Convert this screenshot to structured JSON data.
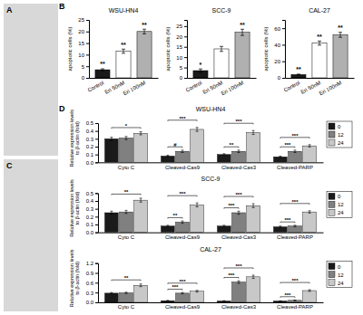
{
  "chart_data": [
    {
      "type": "placeholder",
      "annotations": [
        {
          "text": "A"
        }
      ]
    },
    {
      "type": "bar",
      "title": "WSU-HN4",
      "ylabel": "apoptotic cells (%)",
      "categories": [
        "Control",
        "Eri 50nM",
        "Eri 100nM"
      ],
      "values": [
        3.5,
        11.5,
        20.0
      ],
      "errors": [
        0.4,
        0.9,
        1.0
      ],
      "colors": [
        "#1a1a1a",
        "#ffffff",
        "#b0b0b0"
      ],
      "ylim": [
        0,
        25
      ],
      "yticks": [
        0,
        5,
        10,
        15,
        20,
        25
      ],
      "annotations": [
        {
          "text": "B"
        },
        {
          "text": "**",
          "x": "Control"
        },
        {
          "text": "**",
          "x": "Eri 50nM"
        },
        {
          "text": "**",
          "x": "Eri 100nM"
        }
      ]
    },
    {
      "type": "bar",
      "title": "SCC-9",
      "ylabel": "apoptotic cells (%)",
      "categories": [
        "Control",
        "Eri 50nM",
        "Eri 100nM"
      ],
      "values": [
        3.5,
        14.0,
        22.0
      ],
      "errors": [
        0.8,
        1.2,
        1.5
      ],
      "colors": [
        "#1a1a1a",
        "#ffffff",
        "#b0b0b0"
      ],
      "ylim": [
        0,
        28
      ],
      "yticks": [
        0,
        5,
        10,
        15,
        20,
        25
      ],
      "annotations": [
        {
          "text": "*",
          "x": "Control"
        },
        {
          "text": "**",
          "x": "Eri 100nM"
        }
      ]
    },
    {
      "type": "bar",
      "title": "CAL-27",
      "ylabel": "apoptotic cells (%)",
      "categories": [
        "Control",
        "Eri 50nM",
        "Eri 100nM"
      ],
      "values": [
        4.0,
        42.0,
        52.0
      ],
      "errors": [
        0.5,
        2.5,
        3.0
      ],
      "colors": [
        "#1a1a1a",
        "#ffffff",
        "#b0b0b0"
      ],
      "ylim": [
        0,
        70
      ],
      "yticks": [
        0,
        20,
        40,
        60
      ],
      "annotations": [
        {
          "text": "**",
          "x": "Control"
        },
        {
          "text": "**",
          "x": "Eri 50nM"
        },
        {
          "text": "**",
          "x": "Eri 100nM"
        }
      ]
    },
    {
      "type": "placeholder",
      "annotations": [
        {
          "text": "C"
        }
      ]
    },
    {
      "type": "bar",
      "title": "WSU-HN4",
      "ylabel": "Relative expression levels\nto β-actin (fold)",
      "categories": [
        "Cyto C",
        "Cleaved-Cas9",
        "Cleaved-Cas3",
        "Cleaved-PARP"
      ],
      "series": [
        {
          "name": "0",
          "color": "#1a1a1a",
          "values": [
            0.3,
            0.08,
            0.1,
            0.07
          ],
          "errors": [
            0.02,
            0.01,
            0.01,
            0.01
          ]
        },
        {
          "name": "12",
          "color": "#808080",
          "values": [
            0.31,
            0.14,
            0.14,
            0.14
          ],
          "errors": [
            0.02,
            0.015,
            0.015,
            0.015
          ]
        },
        {
          "name": "24",
          "color": "#c8c8c8",
          "values": [
            0.37,
            0.42,
            0.38,
            0.21
          ],
          "errors": [
            0.02,
            0.025,
            0.025,
            0.015
          ]
        }
      ],
      "ylim": [
        0,
        0.5
      ],
      "yticks": [
        {
          "value": 0,
          "label": "0.0"
        },
        0.1,
        0.2,
        0.3,
        0.4,
        0.5
      ],
      "legend": "right",
      "annotations": [
        {
          "text": "D"
        },
        {
          "text": "*",
          "x": "Cyto C",
          "series": [
            "0",
            "24"
          ]
        },
        {
          "text": "#",
          "x": "Cleaved-Cas9",
          "series": [
            "0",
            "12"
          ]
        },
        {
          "text": "***",
          "x": "Cleaved-Cas9",
          "series": [
            "0",
            "24"
          ]
        },
        {
          "text": "**",
          "x": "Cleaved-Cas3",
          "series": [
            "0",
            "12"
          ]
        },
        {
          "text": "***",
          "x": "Cleaved-Cas3",
          "series": [
            "0",
            "24"
          ]
        },
        {
          "text": "***",
          "x": "Cleaved-PARP",
          "series": [
            "0",
            "12"
          ]
        },
        {
          "text": "***",
          "x": "Cleaved-PARP",
          "series": [
            "0",
            "24"
          ]
        }
      ]
    },
    {
      "type": "bar",
      "title": "SCC-9",
      "ylabel": "Relative expression levels\nto β-actin (fold)",
      "categories": [
        "Cyto C",
        "Cleaved-Cas9",
        "Cleaved-Cas3",
        "Cleaved-PARP"
      ],
      "series": [
        {
          "name": "0",
          "color": "#1a1a1a",
          "values": [
            0.25,
            0.08,
            0.08,
            0.07
          ],
          "errors": [
            0.02,
            0.01,
            0.01,
            0.01
          ]
        },
        {
          "name": "12",
          "color": "#808080",
          "values": [
            0.26,
            0.13,
            0.25,
            0.08
          ],
          "errors": [
            0.02,
            0.015,
            0.02,
            0.01
          ]
        },
        {
          "name": "24",
          "color": "#c8c8c8",
          "values": [
            0.41,
            0.35,
            0.34,
            0.26
          ],
          "errors": [
            0.025,
            0.025,
            0.025,
            0.015
          ]
        }
      ],
      "ylim": [
        0,
        0.5
      ],
      "yticks": [
        {
          "value": 0,
          "label": "0.0"
        },
        0.1,
        0.2,
        0.3,
        0.4,
        0.5
      ],
      "legend": "right",
      "annotations": [
        {
          "text": "**",
          "x": "Cyto C",
          "series": [
            "0",
            "24"
          ]
        },
        {
          "text": "**",
          "x": "Cleaved-Cas9",
          "series": [
            "0",
            "12"
          ]
        },
        {
          "text": "***",
          "x": "Cleaved-Cas9",
          "series": [
            "0",
            "24"
          ]
        },
        {
          "text": "***",
          "x": "Cleaved-Cas3",
          "series": [
            "0",
            "12"
          ]
        },
        {
          "text": "***",
          "x": "Cleaved-Cas3",
          "series": [
            "0",
            "24"
          ]
        },
        {
          "text": "***",
          "x": "Cleaved-PARP",
          "series": [
            "0",
            "12"
          ]
        },
        {
          "text": "***",
          "x": "Cleaved-PARP",
          "series": [
            "0",
            "24"
          ]
        }
      ]
    },
    {
      "type": "bar",
      "title": "CAL-27",
      "ylabel": "Relative expression levels\nto β-actin (fold)",
      "categories": [
        "Cyto C",
        "Cleaved-Cas9",
        "Cleaved-Cas3",
        "Cleaved-PARP"
      ],
      "series": [
        {
          "name": "0",
          "color": "#1a1a1a",
          "values": [
            0.28,
            0.05,
            0.04,
            0.04
          ],
          "errors": [
            0.02,
            0.01,
            0.01,
            0.005
          ]
        },
        {
          "name": "12",
          "color": "#808080",
          "values": [
            0.29,
            0.28,
            0.62,
            0.06
          ],
          "errors": [
            0.02,
            0.02,
            0.04,
            0.01
          ]
        },
        {
          "name": "24",
          "color": "#c8c8c8",
          "values": [
            0.52,
            0.34,
            0.78,
            0.36
          ],
          "errors": [
            0.04,
            0.025,
            0.05,
            0.025
          ]
        }
      ],
      "ylim": [
        0,
        1.2
      ],
      "yticks": [
        {
          "value": 0,
          "label": "0.0"
        },
        0.3,
        0.6,
        0.9,
        1.2
      ],
      "legend": "right",
      "annotations": [
        {
          "text": "**",
          "x": "Cyto C",
          "series": [
            "0",
            "24"
          ]
        },
        {
          "text": "***",
          "x": "Cleaved-Cas9",
          "series": [
            "0",
            "12"
          ]
        },
        {
          "text": "***",
          "x": "Cleaved-Cas9",
          "series": [
            "0",
            "24"
          ]
        },
        {
          "text": "***",
          "x": "Cleaved-Cas3",
          "series": [
            "0",
            "12"
          ]
        },
        {
          "text": "***",
          "x": "Cleaved-Cas3",
          "series": [
            "0",
            "24"
          ]
        },
        {
          "text": "***",
          "x": "Cleaved-PARP",
          "series": [
            "0",
            "12"
          ]
        },
        {
          "text": "***",
          "x": "Cleaved-PARP",
          "series": [
            "0",
            "24"
          ]
        }
      ]
    }
  ]
}
